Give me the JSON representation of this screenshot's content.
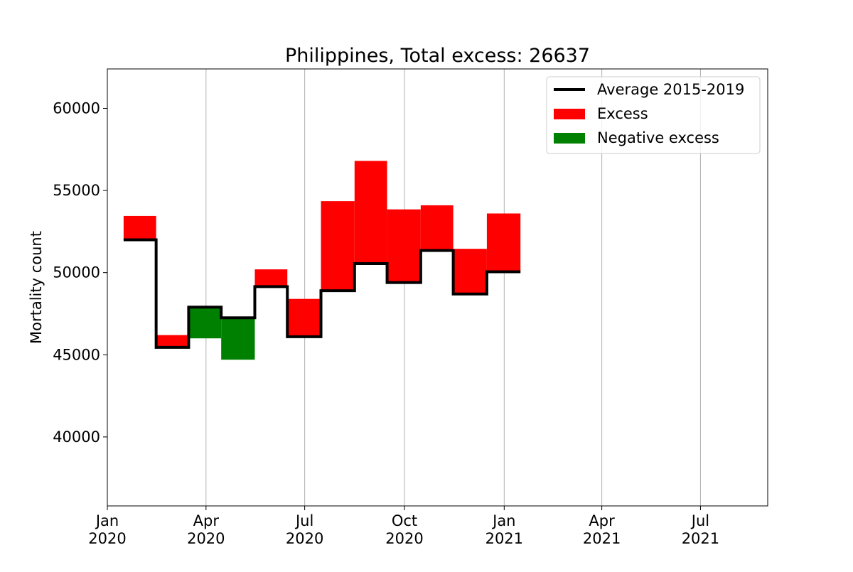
{
  "chart_data": {
    "type": "area",
    "title": "Philippines, Total excess: 26637",
    "xlabel": "",
    "ylabel": "Mortality count",
    "ylim": [
      35800,
      62400
    ],
    "xlim": [
      "2020-01-01",
      "2021-09-01"
    ],
    "grid": {
      "x": true,
      "y": false
    },
    "legend_position": "top-right",
    "y_ticks": [
      {
        "value": 40000,
        "label": "40000"
      },
      {
        "value": 45000,
        "label": "45000"
      },
      {
        "value": 50000,
        "label": "50000"
      },
      {
        "value": 55000,
        "label": "55000"
      },
      {
        "value": 60000,
        "label": "60000"
      }
    ],
    "x_ticks": [
      {
        "date": "2020-01-01",
        "month": "Jan",
        "year": "2020"
      },
      {
        "date": "2020-04-01",
        "month": "Apr",
        "year": "2020"
      },
      {
        "date": "2020-07-01",
        "month": "Jul",
        "year": "2020"
      },
      {
        "date": "2020-10-01",
        "month": "Oct",
        "year": "2020"
      },
      {
        "date": "2021-01-01",
        "month": "Jan",
        "year": "2021"
      },
      {
        "date": "2021-04-01",
        "month": "Apr",
        "year": "2021"
      },
      {
        "date": "2021-07-01",
        "month": "Jul",
        "year": "2021"
      }
    ],
    "months": [
      {
        "start": "2020-01-16",
        "end": "2020-02-15",
        "average": 52000,
        "actual": 53450
      },
      {
        "start": "2020-02-15",
        "end": "2020-03-16",
        "average": 45450,
        "actual": 46200
      },
      {
        "start": "2020-03-16",
        "end": "2020-04-15",
        "average": 47900,
        "actual": 46000
      },
      {
        "start": "2020-04-15",
        "end": "2020-05-16",
        "average": 47250,
        "actual": 44700
      },
      {
        "start": "2020-05-16",
        "end": "2020-06-15",
        "average": 49150,
        "actual": 50200
      },
      {
        "start": "2020-06-15",
        "end": "2020-07-16",
        "average": 46100,
        "actual": 48400
      },
      {
        "start": "2020-07-16",
        "end": "2020-08-16",
        "average": 48900,
        "actual": 54350
      },
      {
        "start": "2020-08-16",
        "end": "2020-09-15",
        "average": 50550,
        "actual": 56800
      },
      {
        "start": "2020-09-15",
        "end": "2020-10-16",
        "average": 49400,
        "actual": 53850
      },
      {
        "start": "2020-10-16",
        "end": "2020-11-15",
        "average": 51350,
        "actual": 54100
      },
      {
        "start": "2020-11-15",
        "end": "2020-12-16",
        "average": 48700,
        "actual": 51450
      },
      {
        "start": "2020-12-16",
        "end": "2021-01-16",
        "average": 50050,
        "actual": 53600
      }
    ],
    "series": [
      {
        "name": "Average 2015-2019",
        "kind": "line",
        "color": "#000000"
      },
      {
        "name": "Excess",
        "kind": "fill",
        "color": "#ff0000"
      },
      {
        "name": "Negative excess",
        "kind": "fill",
        "color": "#008000"
      }
    ]
  }
}
